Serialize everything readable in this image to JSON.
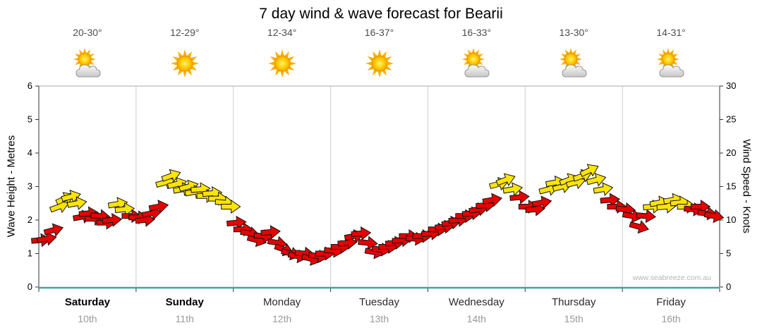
{
  "watermark": "www.seabreeze.com.au",
  "colors": {
    "arrow_red": "#e60000",
    "arrow_yellow": "#ffe400",
    "arrow_outline": "#141414",
    "axis_bottom": "#46a3a3",
    "grid": "#cccccc",
    "border_light": "#aaaaaa",
    "axis_dark": "#333333",
    "sun_core": "#ffd200",
    "sun_edge": "#f5a300",
    "sun_rays": "#ffaf00",
    "cloud_fill": "#dcdcdc",
    "cloud_edge": "#9b9b9b"
  },
  "days": [
    {
      "name": "Saturday",
      "date": "10th",
      "temp": "20-30°",
      "icon": "partly-cloudy",
      "weekend": true
    },
    {
      "name": "Sunday",
      "date": "11th",
      "temp": "12-29°",
      "icon": "sunny",
      "weekend": true
    },
    {
      "name": "Monday",
      "date": "12th",
      "temp": "12-34°",
      "icon": "sunny",
      "weekend": false
    },
    {
      "name": "Tuesday",
      "date": "13th",
      "temp": "16-37°",
      "icon": "sunny",
      "weekend": false
    },
    {
      "name": "Wednesday",
      "date": "14th",
      "temp": "16-33°",
      "icon": "partly-cloudy",
      "weekend": false
    },
    {
      "name": "Thursday",
      "date": "15th",
      "temp": "13-30°",
      "icon": "partly-cloudy",
      "weekend": false
    },
    {
      "name": "Friday",
      "date": "16th",
      "temp": "14-31°",
      "icon": "partly-cloudy",
      "weekend": false
    }
  ],
  "chart_data": {
    "type": "wind-arrows",
    "title": "7 day wind & wave forecast for Bearii",
    "x_categories": [
      "Saturday 10th",
      "Sunday 11th",
      "Monday 12th",
      "Tuesday 13th",
      "Wednesday 14th",
      "Thursday 15th",
      "Friday 16th"
    ],
    "left_axis": {
      "label": "Wave Height - Metres",
      "range": [
        0,
        6
      ],
      "ticks": [
        0,
        1,
        2,
        3,
        4,
        5,
        6
      ]
    },
    "right_axis": {
      "label": "Wind Speed - Knots",
      "range": [
        0,
        30
      ],
      "ticks": [
        0,
        5,
        10,
        15,
        20,
        25,
        30
      ]
    },
    "grid": "vertical-day-separators",
    "wave_height_series": [],
    "arrow_format": [
      "day_index",
      "day_fraction",
      "wind_knots",
      "color",
      "direction_deg"
    ],
    "arrows": [
      [
        0,
        0.02,
        7.0,
        "red",
        -5
      ],
      [
        0,
        0.08,
        7.2,
        "red",
        -10
      ],
      [
        0,
        0.15,
        8.5,
        "red",
        -15
      ],
      [
        0,
        0.21,
        12.0,
        "yellow",
        -20
      ],
      [
        0,
        0.27,
        13.2,
        "yellow",
        -25
      ],
      [
        0,
        0.33,
        13.5,
        "yellow",
        -15
      ],
      [
        0,
        0.39,
        12.5,
        "yellow",
        -10
      ],
      [
        0,
        0.45,
        10.5,
        "red",
        -10
      ],
      [
        0,
        0.51,
        11.0,
        "red",
        -5
      ],
      [
        0,
        0.57,
        10.2,
        "red",
        0
      ],
      [
        0,
        0.63,
        10.6,
        "red",
        5
      ],
      [
        0,
        0.69,
        9.6,
        "red",
        0
      ],
      [
        0,
        0.75,
        10.0,
        "red",
        -5
      ],
      [
        0,
        0.81,
        12.4,
        "yellow",
        -10
      ],
      [
        0,
        0.88,
        11.6,
        "yellow",
        -5
      ],
      [
        0,
        0.95,
        10.6,
        "red",
        0
      ],
      [
        1,
        0.02,
        10.4,
        "red",
        0
      ],
      [
        1,
        0.09,
        10.0,
        "red",
        -5
      ],
      [
        1,
        0.16,
        11.0,
        "red",
        -10
      ],
      [
        1,
        0.23,
        12.0,
        "red",
        -10
      ],
      [
        1,
        0.3,
        15.6,
        "yellow",
        -15
      ],
      [
        1,
        0.36,
        16.6,
        "yellow",
        -20
      ],
      [
        1,
        0.42,
        15.4,
        "yellow",
        -15
      ],
      [
        1,
        0.48,
        14.6,
        "yellow",
        -10
      ],
      [
        1,
        0.54,
        15.0,
        "yellow",
        -15
      ],
      [
        1,
        0.6,
        14.2,
        "yellow",
        -10
      ],
      [
        1,
        0.66,
        14.6,
        "yellow",
        -5
      ],
      [
        1,
        0.72,
        13.6,
        "yellow",
        0
      ],
      [
        1,
        0.78,
        14.0,
        "yellow",
        -5
      ],
      [
        1,
        0.84,
        13.2,
        "yellow",
        0
      ],
      [
        1,
        0.91,
        12.6,
        "yellow",
        5
      ],
      [
        1,
        0.97,
        12.0,
        "yellow",
        0
      ],
      [
        2,
        0.03,
        9.6,
        "red",
        -5
      ],
      [
        2,
        0.1,
        8.6,
        "red",
        0
      ],
      [
        2,
        0.17,
        8.0,
        "red",
        10
      ],
      [
        2,
        0.24,
        7.0,
        "red",
        15
      ],
      [
        2,
        0.31,
        7.6,
        "red",
        5
      ],
      [
        2,
        0.38,
        8.2,
        "red",
        -5
      ],
      [
        2,
        0.45,
        6.6,
        "red",
        10
      ],
      [
        2,
        0.52,
        5.6,
        "red",
        20
      ],
      [
        2,
        0.59,
        5.0,
        "red",
        15
      ],
      [
        2,
        0.66,
        4.6,
        "red",
        10
      ],
      [
        2,
        0.73,
        5.0,
        "red",
        5
      ],
      [
        2,
        0.8,
        4.2,
        "red",
        15
      ],
      [
        2,
        0.87,
        4.6,
        "red",
        10
      ],
      [
        2,
        0.94,
        5.0,
        "red",
        0
      ],
      [
        3,
        0.03,
        5.4,
        "red",
        5
      ],
      [
        3,
        0.1,
        6.0,
        "red",
        0
      ],
      [
        3,
        0.17,
        6.6,
        "red",
        -5
      ],
      [
        3,
        0.24,
        7.6,
        "red",
        -10
      ],
      [
        3,
        0.31,
        8.0,
        "red",
        -5
      ],
      [
        3,
        0.38,
        6.6,
        "red",
        5
      ],
      [
        3,
        0.45,
        5.2,
        "red",
        10
      ],
      [
        3,
        0.52,
        5.6,
        "red",
        5
      ],
      [
        3,
        0.59,
        6.0,
        "red",
        0
      ],
      [
        3,
        0.66,
        6.6,
        "red",
        -5
      ],
      [
        3,
        0.73,
        7.0,
        "red",
        -5
      ],
      [
        3,
        0.8,
        7.6,
        "red",
        0
      ],
      [
        3,
        0.87,
        7.2,
        "red",
        5
      ],
      [
        3,
        0.94,
        7.6,
        "red",
        0
      ],
      [
        4,
        0.03,
        8.0,
        "red",
        -5
      ],
      [
        4,
        0.1,
        8.6,
        "red",
        0
      ],
      [
        4,
        0.17,
        9.0,
        "red",
        -5
      ],
      [
        4,
        0.24,
        9.6,
        "red",
        -10
      ],
      [
        4,
        0.31,
        10.0,
        "red",
        -5
      ],
      [
        4,
        0.38,
        10.6,
        "red",
        0
      ],
      [
        4,
        0.45,
        11.0,
        "red",
        -5
      ],
      [
        4,
        0.52,
        11.6,
        "red",
        -10
      ],
      [
        4,
        0.59,
        12.2,
        "red",
        -5
      ],
      [
        4,
        0.66,
        13.0,
        "red",
        -10
      ],
      [
        4,
        0.73,
        15.4,
        "yellow",
        -15
      ],
      [
        4,
        0.8,
        16.0,
        "yellow",
        -20
      ],
      [
        4,
        0.87,
        14.6,
        "yellow",
        -10
      ],
      [
        4,
        0.94,
        13.4,
        "red",
        -5
      ],
      [
        5,
        0.03,
        12.0,
        "red",
        0
      ],
      [
        5,
        0.1,
        11.6,
        "red",
        -5
      ],
      [
        5,
        0.17,
        12.6,
        "red",
        -10
      ],
      [
        5,
        0.24,
        14.6,
        "yellow",
        -15
      ],
      [
        5,
        0.31,
        15.6,
        "yellow",
        -10
      ],
      [
        5,
        0.38,
        15.0,
        "yellow",
        -15
      ],
      [
        5,
        0.45,
        16.0,
        "yellow",
        -20
      ],
      [
        5,
        0.52,
        15.6,
        "yellow",
        -15
      ],
      [
        5,
        0.59,
        16.6,
        "yellow",
        -20
      ],
      [
        5,
        0.66,
        17.4,
        "yellow",
        -25
      ],
      [
        5,
        0.73,
        16.0,
        "yellow",
        -15
      ],
      [
        5,
        0.8,
        14.6,
        "yellow",
        -10
      ],
      [
        5,
        0.87,
        13.0,
        "red",
        -5
      ],
      [
        5,
        0.94,
        12.0,
        "red",
        0
      ],
      [
        6,
        0.03,
        11.6,
        "red",
        5
      ],
      [
        6,
        0.1,
        10.6,
        "red",
        10
      ],
      [
        6,
        0.17,
        9.0,
        "red",
        15
      ],
      [
        6,
        0.24,
        10.6,
        "red",
        5
      ],
      [
        6,
        0.31,
        12.0,
        "yellow",
        -5
      ],
      [
        6,
        0.38,
        12.6,
        "yellow",
        -10
      ],
      [
        6,
        0.45,
        12.0,
        "yellow",
        -5
      ],
      [
        6,
        0.52,
        13.0,
        "yellow",
        -10
      ],
      [
        6,
        0.59,
        12.6,
        "yellow",
        -5
      ],
      [
        6,
        0.66,
        12.0,
        "yellow",
        0
      ],
      [
        6,
        0.73,
        11.6,
        "red",
        5
      ],
      [
        6,
        0.8,
        12.0,
        "red",
        0
      ],
      [
        6,
        0.87,
        11.0,
        "red",
        5
      ],
      [
        6,
        0.94,
        10.6,
        "red",
        10
      ]
    ]
  }
}
